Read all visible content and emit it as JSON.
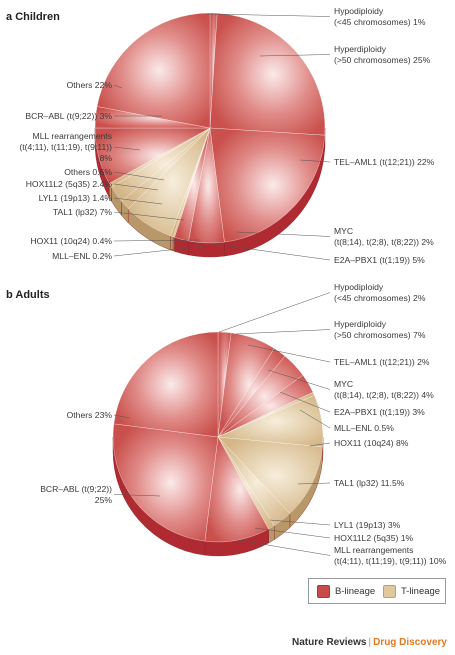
{
  "figure": {
    "publisher": "Nature Reviews",
    "separator": "|",
    "journal": "Drug Discovery"
  },
  "legend": [
    {
      "label": "B-lineage",
      "color": "#c94a4a"
    },
    {
      "label": "T-lineage",
      "color": "#e0c9a0"
    }
  ],
  "colors": {
    "b_light": "#fbeaea",
    "b_mid": "#d96a68",
    "b_dark": "#b02a32",
    "t_light": "#f5ead6",
    "t_mid": "#d9bf93",
    "t_dark": "#b89868",
    "leader": "#555555"
  },
  "chart_data": [
    {
      "type": "pie",
      "panel": "a",
      "title": "Children",
      "slices": [
        {
          "label": "Hypodiploidy (<45 chromosomes) 1%",
          "value": 1,
          "lineage": "B"
        },
        {
          "label": "Hyperdiploidy (>50 chromosomes) 25%",
          "value": 25,
          "lineage": "B"
        },
        {
          "label": "TEL–AML1 (t(12;21)) 22%",
          "value": 22,
          "lineage": "B"
        },
        {
          "label": "E2A–PBX1 (t(1;19)) 5%",
          "value": 5,
          "lineage": "B"
        },
        {
          "label": "MYC (t(8;14), t(2;8), t(8;22)) 2%",
          "value": 2,
          "lineage": "B"
        },
        {
          "label": "MLL–ENL 0.2%",
          "value": 0.2,
          "lineage": "T"
        },
        {
          "label": "HOX11 (10q24) 0.4%",
          "value": 0.4,
          "lineage": "T"
        },
        {
          "label": "TAL1 (lp32) 7%",
          "value": 7,
          "lineage": "T"
        },
        {
          "label": "LYL1 (19p13) 1.4%",
          "value": 1.4,
          "lineage": "T"
        },
        {
          "label": "HOX11L2 (5q35) 2.4%",
          "value": 2.4,
          "lineage": "T"
        },
        {
          "label": "Others 0.6%",
          "value": 0.6,
          "lineage": "T"
        },
        {
          "label": "MLL rearrangements (t(4;11), t(11;19), t(9;11)) 8%",
          "value": 8,
          "lineage": "B"
        },
        {
          "label": "BCR–ABL (t(9;22)) 3%",
          "value": 3,
          "lineage": "B"
        },
        {
          "label": "Others 22%",
          "value": 22,
          "lineage": "B"
        }
      ],
      "labels": [
        {
          "key": "hypo",
          "lines": [
            "Hypodiploidy",
            "(<45 chromosomes) 1%"
          ]
        },
        {
          "key": "hyper",
          "lines": [
            "Hyperdiploidy",
            "(>50 chromosomes) 25%"
          ]
        },
        {
          "key": "tel",
          "lines": [
            "TEL–AML1 (t(12;21)) 22%"
          ]
        },
        {
          "key": "myc",
          "lines": [
            "MYC",
            "(t(8;14), t(2;8), t(8;22)) 2%"
          ]
        },
        {
          "key": "e2a",
          "lines": [
            "E2A–PBX1 (t(1;19)) 5%"
          ]
        },
        {
          "key": "others_big",
          "lines": [
            "Others 22%"
          ]
        },
        {
          "key": "bcr",
          "lines": [
            "BCR–ABL (t(9;22)) 3%"
          ]
        },
        {
          "key": "mll",
          "lines": [
            "MLL rearrangements",
            "(t(4;11), t(11;19), t(9;11))",
            "8%"
          ]
        },
        {
          "key": "others_small",
          "lines": [
            "Others 0.6%"
          ]
        },
        {
          "key": "hox11l2",
          "lines": [
            "HOX11L2 (5q35) 2.4%"
          ]
        },
        {
          "key": "lyl1",
          "lines": [
            "LYL1 (19p13) 1.4%"
          ]
        },
        {
          "key": "tal1",
          "lines": [
            "TAL1 (lp32) 7%"
          ]
        },
        {
          "key": "hox11",
          "lines": [
            "HOX11 (10q24) 0.4%"
          ]
        },
        {
          "key": "mllenl",
          "lines": [
            "MLL–ENL 0.2%"
          ]
        }
      ]
    },
    {
      "type": "pie",
      "panel": "b",
      "title": "Adults",
      "slices": [
        {
          "label": "Hypodiploidy (<45 chromosomes) 2%",
          "value": 2,
          "lineage": "B"
        },
        {
          "label": "Hyperdiploidy (>50 chromosomes) 7%",
          "value": 7,
          "lineage": "B"
        },
        {
          "label": "TEL–AML1 (t(12;21)) 2%",
          "value": 2,
          "lineage": "B"
        },
        {
          "label": "MYC (t(8;14), t(2;8), t(8;22)) 4%",
          "value": 4,
          "lineage": "B"
        },
        {
          "label": "E2A–PBX1 (t(1;19)) 3%",
          "value": 3,
          "lineage": "B"
        },
        {
          "label": "MLL–ENL 0.5%",
          "value": 0.5,
          "lineage": "T"
        },
        {
          "label": "HOX11 (10q24) 8%",
          "value": 8,
          "lineage": "T"
        },
        {
          "label": "TAL1 (lp32) 11.5%",
          "value": 11.5,
          "lineage": "T"
        },
        {
          "label": "LYL1 (19p13) 3%",
          "value": 3,
          "lineage": "T"
        },
        {
          "label": "HOX11L2 (5q35) 1%",
          "value": 1,
          "lineage": "T"
        },
        {
          "label": "MLL rearrangements (t(4;11), t(11;19), t(9;11)) 10%",
          "value": 10,
          "lineage": "B"
        },
        {
          "label": "BCR–ABL (t(9;22)) 25%",
          "value": 25,
          "lineage": "B"
        },
        {
          "label": "Others 23%",
          "value": 23,
          "lineage": "B"
        }
      ],
      "labels": [
        {
          "key": "hypo",
          "lines": [
            "Hypodiploidy",
            "(<45 chromosomes) 2%"
          ]
        },
        {
          "key": "hyper",
          "lines": [
            "Hyperdiploidy",
            "(>50 chromosomes) 7%"
          ]
        },
        {
          "key": "tel",
          "lines": [
            "TEL–AML1 (t(12;21)) 2%"
          ]
        },
        {
          "key": "myc",
          "lines": [
            "MYC",
            "(t(8;14), t(2;8), t(8;22)) 4%"
          ]
        },
        {
          "key": "e2a",
          "lines": [
            "E2A–PBX1 (t(1;19)) 3%"
          ]
        },
        {
          "key": "mllenl",
          "lines": [
            "MLL–ENL 0.5%"
          ]
        },
        {
          "key": "hox11",
          "lines": [
            "HOX11 (10q24) 8%"
          ]
        },
        {
          "key": "tal1",
          "lines": [
            "TAL1 (lp32) 11.5%"
          ]
        },
        {
          "key": "lyl1",
          "lines": [
            "LYL1 (19p13) 3%"
          ]
        },
        {
          "key": "hox11l2",
          "lines": [
            "HOX11L2 (5q35) 1%"
          ]
        },
        {
          "key": "mll",
          "lines": [
            "MLL rearrangements",
            "(t(4;11), t(11;19), t(9;11)) 10%"
          ]
        },
        {
          "key": "others",
          "lines": [
            "Others 23%"
          ]
        },
        {
          "key": "bcr",
          "lines": [
            "BCR–ABL (t(9;22))",
            "25%"
          ]
        }
      ]
    }
  ]
}
